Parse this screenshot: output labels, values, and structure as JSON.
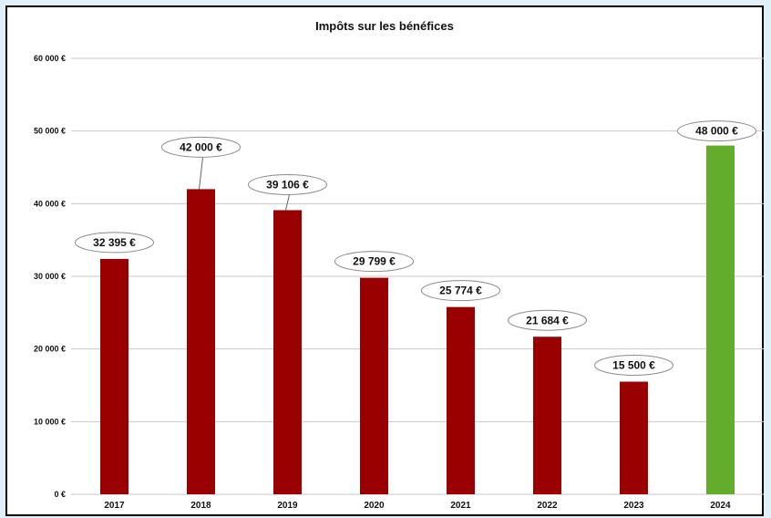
{
  "chart_data": {
    "type": "bar",
    "title": "Impôts sur les bénéfices",
    "xlabel": "",
    "ylabel": "",
    "categories": [
      "2017",
      "2018",
      "2019",
      "2020",
      "2021",
      "2022",
      "2023",
      "2024"
    ],
    "values": [
      32395,
      42000,
      39106,
      29799,
      25774,
      21684,
      15500,
      48000
    ],
    "value_labels": [
      "32 395 €",
      "42 000 €",
      "39 106 €",
      "29 799 €",
      "25 774 €",
      "21 684 €",
      "15 500 €",
      "48 000 €"
    ],
    "ylim": [
      0,
      60000
    ],
    "y_ticks": [
      0,
      10000,
      20000,
      30000,
      40000,
      50000,
      60000
    ],
    "y_tick_labels": [
      "0 €",
      "10 000 €",
      "20 000 €",
      "30 000 €",
      "40 000 €",
      "50 000 €",
      "60 000 €"
    ],
    "grid": true,
    "legend": "none",
    "bar_colors": [
      "#990000",
      "#990000",
      "#990000",
      "#990000",
      "#990000",
      "#990000",
      "#990000",
      "#62ad2c"
    ]
  },
  "colors": {
    "background": "#dff0fb",
    "grid": "#c8c8c8",
    "label_border": "#8a8a8a"
  }
}
